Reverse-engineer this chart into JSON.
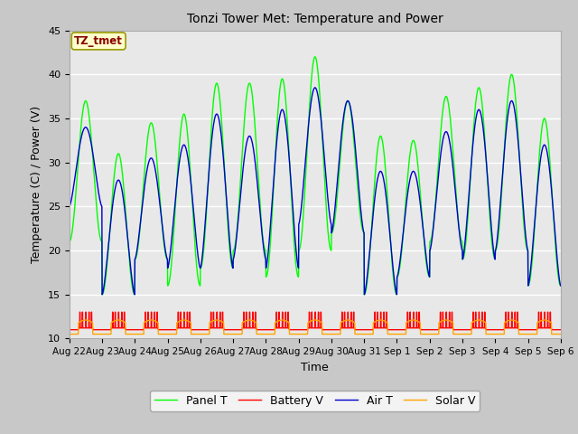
{
  "title": "Tonzi Tower Met: Temperature and Power",
  "xlabel": "Time",
  "ylabel": "Temperature (C) / Power (V)",
  "ylim": [
    10,
    45
  ],
  "yticks": [
    10,
    15,
    20,
    25,
    30,
    35,
    40,
    45
  ],
  "annotation_text": "TZ_tmet",
  "annotation_color": "#8B0000",
  "annotation_bg": "#FFFFCC",
  "annotation_border": "#999900",
  "x_tick_labels": [
    "Aug 22",
    "Aug 23",
    "Aug 24",
    "Aug 25",
    "Aug 26",
    "Aug 27",
    "Aug 28",
    "Aug 29",
    "Aug 30",
    "Aug 31",
    "Sep 1",
    "Sep 2",
    "Sep 3",
    "Sep 4",
    "Sep 5",
    "Sep 6"
  ],
  "panel_color": "#00FF00",
  "battery_color": "#FF0000",
  "air_color": "#0000CD",
  "solar_color": "#FFA500",
  "fig_bg": "#C8C8C8",
  "plot_bg": "#E8E8E8",
  "legend_labels": [
    "Panel T",
    "Battery V",
    "Air T",
    "Solar V"
  ],
  "n_days": 15,
  "pts_per_day": 144,
  "panel_peaks": [
    37,
    31,
    34.5,
    35.5,
    39,
    39,
    39.5,
    42,
    37,
    33,
    32.5,
    37.5,
    38.5,
    40,
    35
  ],
  "air_peaks": [
    34,
    28,
    30.5,
    32,
    35.5,
    33,
    36,
    38.5,
    37,
    29,
    29,
    33.5,
    36,
    37,
    32
  ],
  "panel_mins": [
    21,
    15,
    19,
    16,
    18,
    20,
    17,
    20,
    22,
    15,
    17,
    21,
    19,
    20,
    16
  ],
  "air_mins": [
    25,
    15,
    19,
    18,
    18,
    19,
    18,
    23,
    22,
    15,
    17,
    20,
    19,
    20,
    16
  ]
}
